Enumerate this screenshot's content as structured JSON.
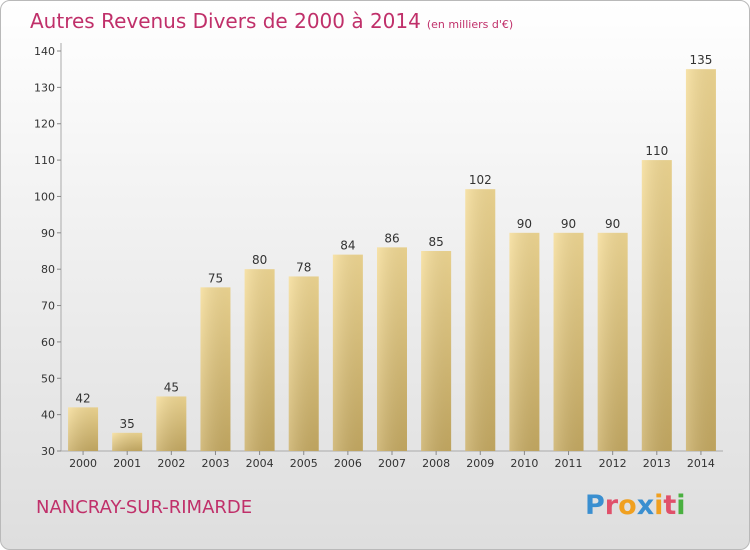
{
  "chart_data": {
    "type": "bar",
    "title": "Autres Revenus Divers de 2000 à 2014",
    "subtitle": "(en milliers d'€)",
    "categories": [
      "2000",
      "2001",
      "2002",
      "2003",
      "2004",
      "2005",
      "2006",
      "2007",
      "2008",
      "2009",
      "2010",
      "2011",
      "2012",
      "2013",
      "2014"
    ],
    "values": [
      42,
      35,
      45,
      75,
      80,
      78,
      84,
      86,
      85,
      102,
      90,
      90,
      90,
      110,
      135
    ],
    "ylim": [
      30,
      140
    ],
    "yticks": [
      30,
      40,
      50,
      60,
      70,
      80,
      90,
      100,
      110,
      120,
      130,
      140
    ],
    "grid": false,
    "bar_color": "#e8c878"
  },
  "footer": {
    "place": "NANCRAY-SUR-RIMARDE",
    "logo_text": "Proxiti"
  },
  "colors": {
    "title": "#c0306a",
    "logo": [
      "#3a8fd0",
      "#e0506a",
      "#f0a020",
      "#3a8fd0",
      "#f0a020",
      "#e0506a",
      "#4ab040"
    ]
  }
}
